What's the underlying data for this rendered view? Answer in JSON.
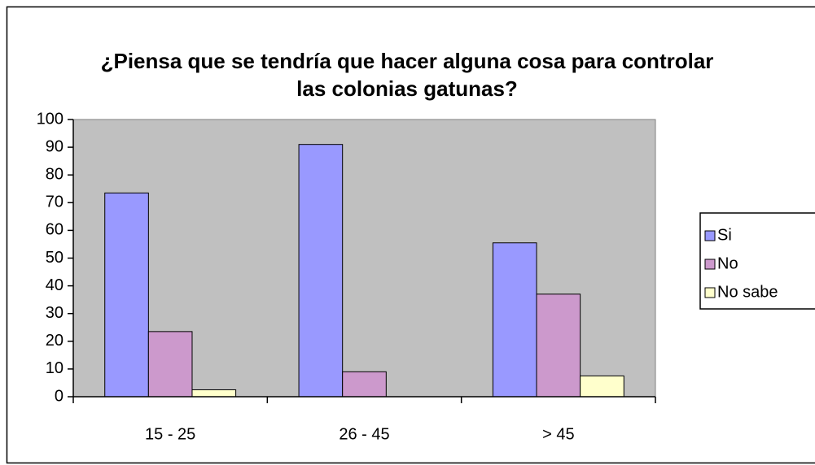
{
  "chart_data": {
    "type": "bar",
    "title": "¿Piensa que se tendría que hacer alguna cosa  para controlar las colonias gatunas?",
    "categories": [
      "15 - 25",
      "26 - 45",
      "> 45"
    ],
    "series": [
      {
        "name": "Si",
        "color": "#9999ff",
        "values": [
          73.5,
          91,
          55.5
        ]
      },
      {
        "name": "No",
        "color": "#cc99cc",
        "values": [
          23.5,
          9,
          37
        ]
      },
      {
        "name": "No sabe",
        "color": "#ffffcc",
        "values": [
          2.5,
          0,
          7.5
        ]
      }
    ],
    "ylim": [
      0,
      100
    ],
    "yticks": [
      0,
      10,
      20,
      30,
      40,
      50,
      60,
      70,
      80,
      90,
      100
    ],
    "legend": "right",
    "plot_background": "#c0c0c0"
  }
}
